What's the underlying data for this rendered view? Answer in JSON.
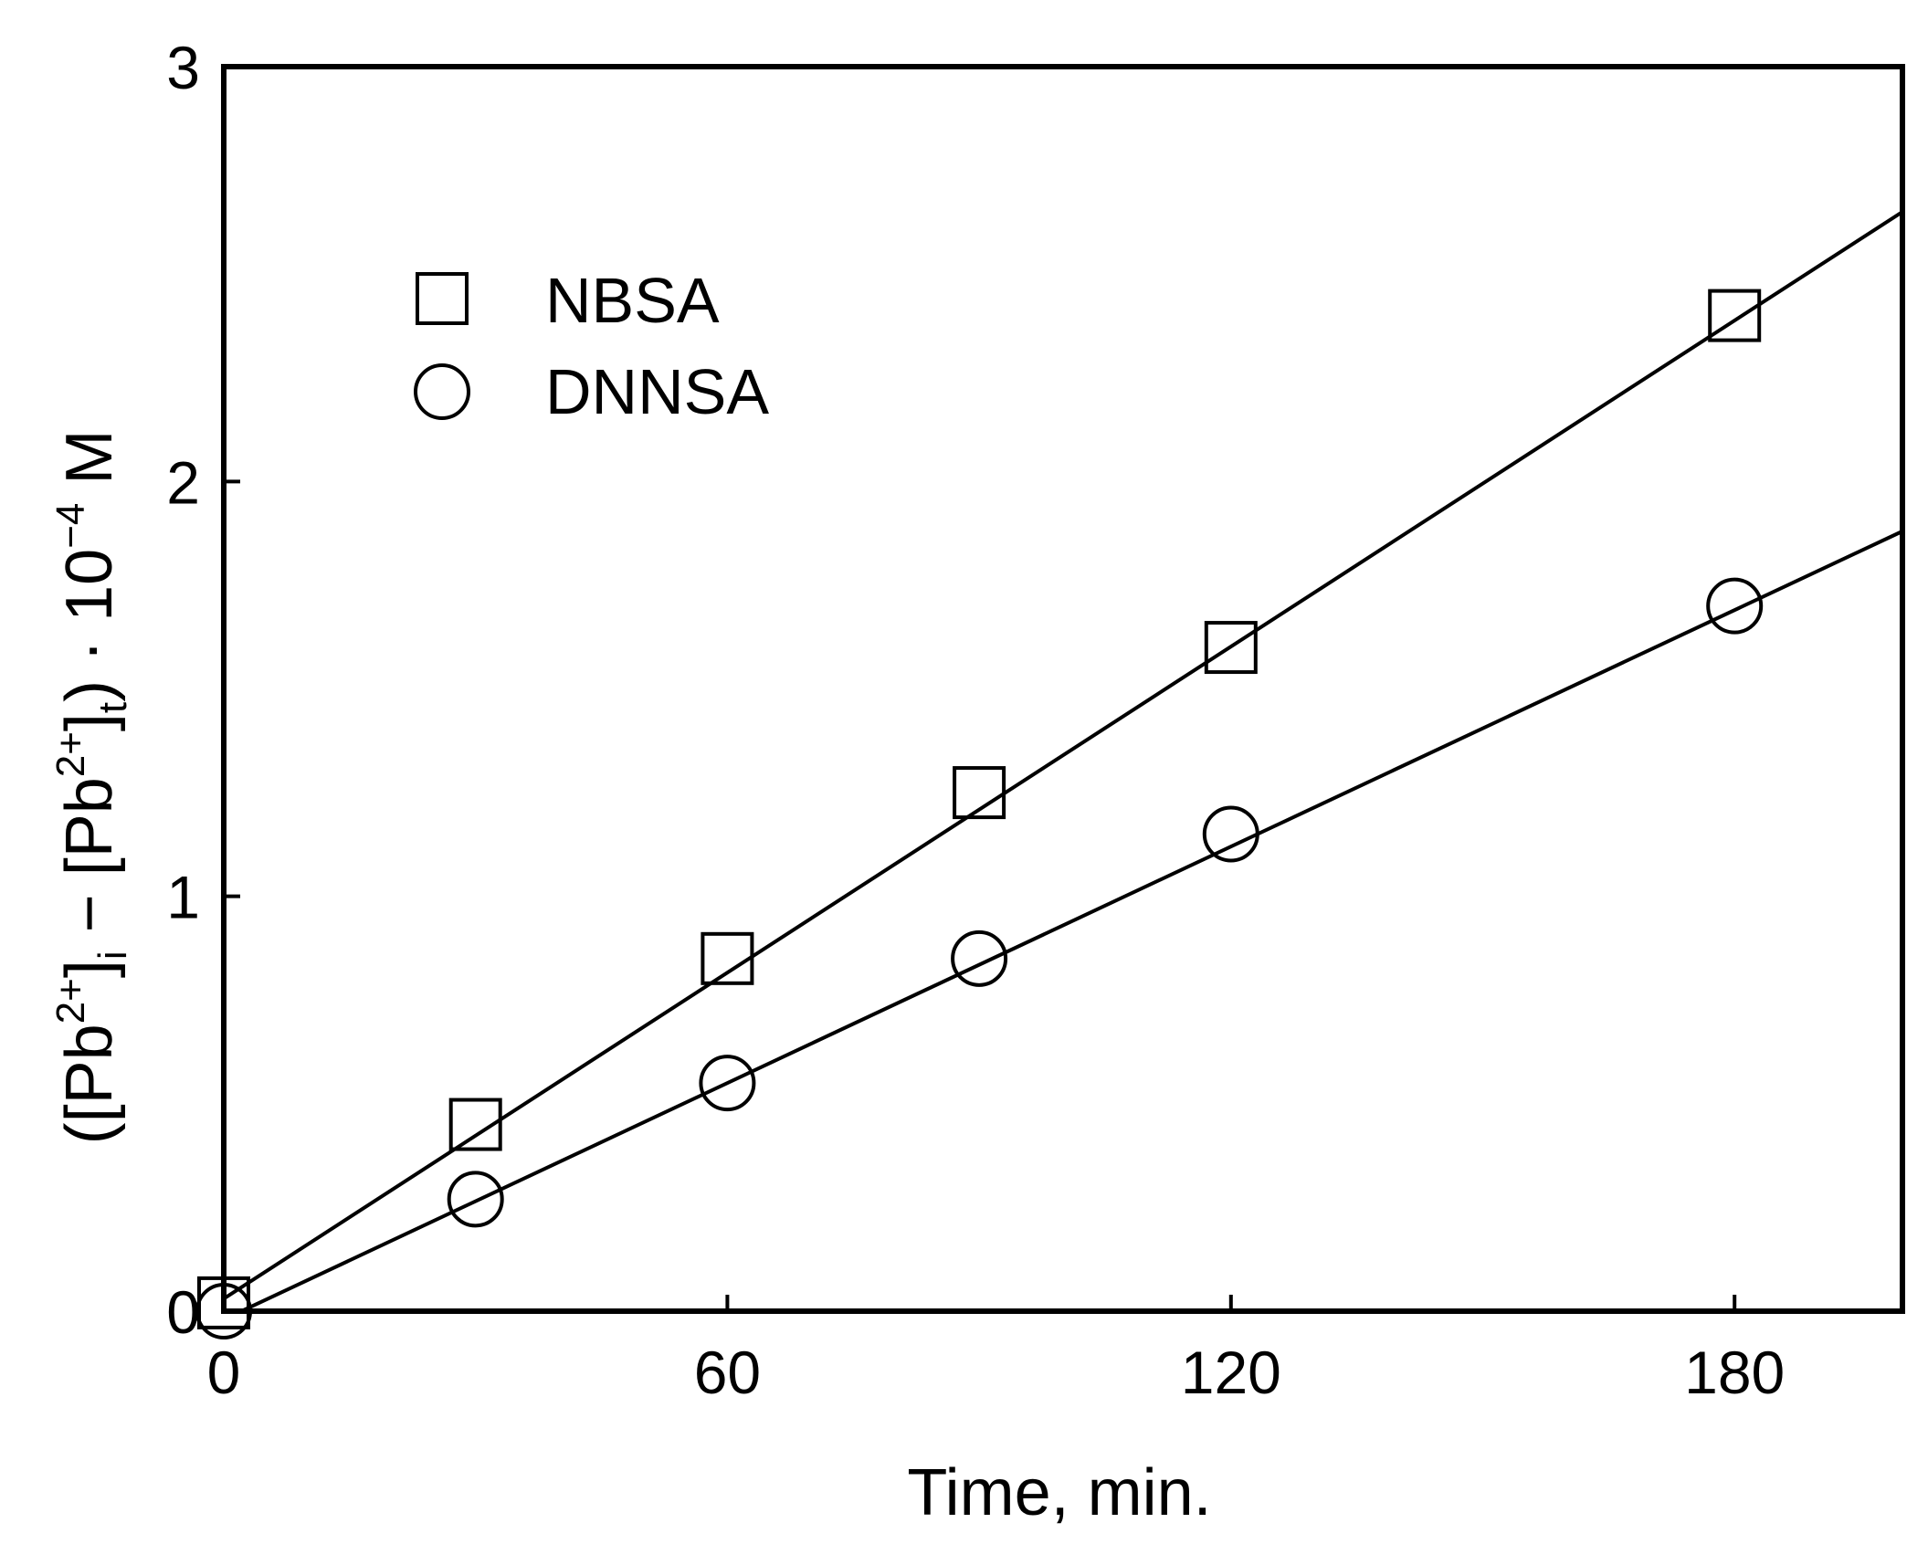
{
  "chart_data": {
    "type": "scatter",
    "title": "",
    "xlabel": "Time, min.",
    "ylabel": {
      "parts": [
        "([Pb",
        "2+",
        "]",
        "i",
        " − [Pb",
        "2+",
        "]",
        "t",
        ") · 10",
        "−4",
        " M"
      ]
    },
    "xlim": [
      0,
      200
    ],
    "ylim": [
      0,
      3
    ],
    "xticks": [
      0,
      60,
      120,
      180
    ],
    "yticks": [
      0,
      1,
      2,
      3
    ],
    "xtick_labels": [
      "0",
      "60",
      "120",
      "180"
    ],
    "ytick_labels": [
      "0",
      "1",
      "2",
      "3"
    ],
    "grid": false,
    "legend_position": "upper-left",
    "series": [
      {
        "name": "NBSA",
        "marker": "square",
        "x": [
          0,
          30,
          60,
          90,
          120,
          180
        ],
        "y": [
          0.02,
          0.45,
          0.85,
          1.25,
          1.6,
          2.4
        ],
        "fit": {
          "x": [
            0,
            200
          ],
          "y": [
            0.03,
            2.65
          ]
        }
      },
      {
        "name": "DNNSA",
        "marker": "circle",
        "x": [
          0,
          30,
          60,
          90,
          120,
          180
        ],
        "y": [
          0.0,
          0.27,
          0.55,
          0.85,
          1.15,
          1.7
        ],
        "fit": {
          "x": [
            0,
            200
          ],
          "y": [
            -0.02,
            1.88
          ]
        }
      }
    ]
  }
}
